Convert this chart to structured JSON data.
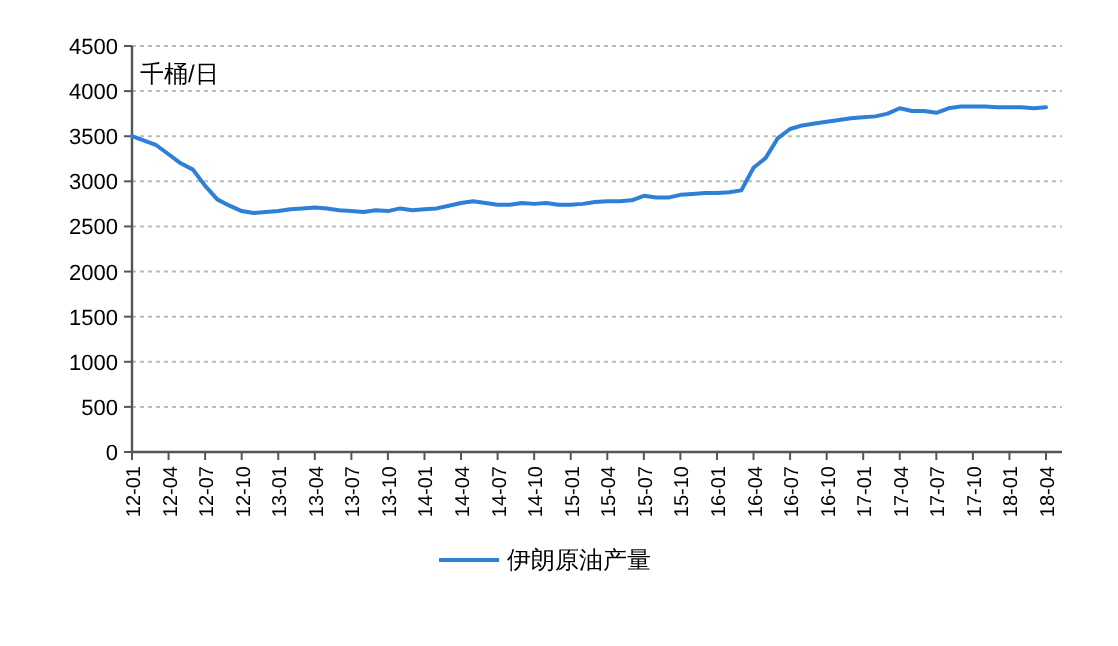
{
  "chart_data": {
    "type": "line",
    "ylabel": "千桶/日",
    "categories": [
      "12-01",
      null,
      null,
      "12-04",
      null,
      null,
      "12-07",
      null,
      null,
      "12-10",
      null,
      null,
      "13-01",
      null,
      null,
      "13-04",
      null,
      null,
      "13-07",
      null,
      null,
      "13-10",
      null,
      null,
      "14-01",
      null,
      null,
      "14-04",
      null,
      null,
      "14-07",
      null,
      null,
      "14-10",
      null,
      null,
      "15-01",
      null,
      null,
      "15-04",
      null,
      null,
      "15-07",
      null,
      null,
      "15-10",
      null,
      null,
      "16-01",
      null,
      null,
      "16-04",
      null,
      null,
      "16-07",
      null,
      null,
      "16-10",
      null,
      null,
      "17-01",
      null,
      null,
      "17-04",
      null,
      null,
      "17-07",
      null,
      null,
      "17-10",
      null,
      null,
      "18-01",
      null,
      null,
      "18-04"
    ],
    "series": [
      {
        "name": "伊朗原油产量",
        "color": "#2e7fd6",
        "values": [
          3500,
          3450,
          3400,
          3300,
          3200,
          3130,
          2950,
          2800,
          2730,
          2670,
          2650,
          2660,
          2670,
          2690,
          2700,
          2710,
          2700,
          2680,
          2670,
          2660,
          2680,
          2670,
          2700,
          2680,
          2690,
          2700,
          2730,
          2760,
          2780,
          2760,
          2740,
          2740,
          2760,
          2750,
          2760,
          2740,
          2740,
          2750,
          2770,
          2780,
          2780,
          2790,
          2840,
          2820,
          2820,
          2850,
          2860,
          2870,
          2870,
          2880,
          2900,
          3150,
          3260,
          3480,
          3580,
          3620,
          3640,
          3660,
          3680,
          3700,
          3710,
          3720,
          3750,
          3810,
          3780,
          3780,
          3760,
          3810,
          3830,
          3830,
          3830,
          3820,
          3820,
          3820,
          3810,
          3820
        ]
      }
    ],
    "ylim": [
      0,
      4500
    ],
    "yticks": [
      0,
      500,
      1000,
      1500,
      2000,
      2500,
      3000,
      3500,
      4000,
      4500
    ],
    "grid": "y",
    "legend": "bottom",
    "marker": "none",
    "line_style": "solid"
  }
}
